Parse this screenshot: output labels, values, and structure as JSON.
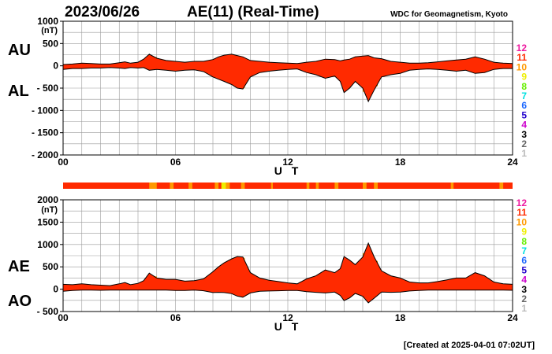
{
  "header": {
    "date": "2023/06/26",
    "title": "AE(11) (Real-Time)",
    "institution": "WDC for Geomagnetism, Kyoto"
  },
  "footer": {
    "created": "[Created at 2025-04-01 07:02UT]"
  },
  "colors": {
    "fill_main": "#ff2a00",
    "fill_light": "#ffd000",
    "fill_mid": "#ff9900",
    "grid": "#9a9a9a",
    "curve": "#000000"
  },
  "station_legend": [
    {
      "label": "12",
      "color": "#ee1aa0"
    },
    {
      "label": "11",
      "color": "#ff2a00"
    },
    {
      "label": "10",
      "color": "#ff9900"
    },
    {
      "label": "9",
      "color": "#eeee00"
    },
    {
      "label": "8",
      "color": "#66ee00"
    },
    {
      "label": "7",
      "color": "#00e0e0"
    },
    {
      "label": "6",
      "color": "#1a66ff"
    },
    {
      "label": "5",
      "color": "#2200cc"
    },
    {
      "label": "4",
      "color": "#cc00cc"
    },
    {
      "label": "3",
      "color": "#000000"
    },
    {
      "label": "2",
      "color": "#666666"
    },
    {
      "label": "1",
      "color": "#bbbbbb"
    }
  ],
  "chart_data": [
    {
      "type": "area",
      "id": "au_al",
      "series_labels": [
        "AU",
        "AL"
      ],
      "unit": "(nT)",
      "xlabel": "U T",
      "xlim": [
        0,
        24
      ],
      "xticks": [
        "00",
        "06",
        "12",
        "18",
        "24"
      ],
      "ylim": [
        -2000,
        1000
      ],
      "yticks": [
        "1000",
        "500",
        "0",
        "- 500",
        "- 1000",
        "- 1500",
        "- 2000"
      ],
      "grid": true,
      "x_hours": [
        0,
        0.5,
        1,
        1.5,
        2,
        2.5,
        3,
        3.3,
        3.6,
        4,
        4.3,
        4.6,
        5,
        5.5,
        6,
        6.5,
        7,
        7.5,
        8,
        8.3,
        8.6,
        9,
        9.3,
        9.6,
        10,
        10.5,
        11,
        11.5,
        12,
        12.5,
        13,
        13.5,
        14,
        14.5,
        14.8,
        15,
        15.3,
        15.6,
        16,
        16.3,
        16.6,
        17,
        17.5,
        18,
        18.5,
        19,
        19.5,
        20,
        20.5,
        21,
        21.5,
        22,
        22.5,
        23,
        23.5,
        24
      ],
      "au": [
        30,
        40,
        60,
        50,
        40,
        40,
        70,
        90,
        60,
        80,
        150,
        260,
        170,
        120,
        100,
        80,
        100,
        100,
        140,
        200,
        240,
        260,
        230,
        200,
        120,
        100,
        80,
        70,
        60,
        50,
        80,
        100,
        150,
        140,
        110,
        130,
        150,
        200,
        220,
        230,
        180,
        160,
        100,
        80,
        60,
        60,
        70,
        90,
        110,
        130,
        150,
        200,
        150,
        80,
        60,
        50
      ],
      "al": [
        -80,
        -60,
        -60,
        -50,
        -50,
        -40,
        -50,
        -60,
        -40,
        -50,
        -40,
        -100,
        -80,
        -100,
        -120,
        -100,
        -90,
        -130,
        -250,
        -300,
        -350,
        -420,
        -500,
        -520,
        -250,
        -150,
        -120,
        -100,
        -80,
        -70,
        -150,
        -200,
        -280,
        -230,
        -350,
        -600,
        -500,
        -350,
        -500,
        -800,
        -550,
        -250,
        -200,
        -170,
        -100,
        -80,
        -70,
        -80,
        -100,
        -120,
        -100,
        -170,
        -150,
        -80,
        -60,
        -60
      ],
      "station_bands": [
        {
          "start": 4.6,
          "end": 5.0,
          "station": "10"
        },
        {
          "start": 5.7,
          "end": 5.9,
          "station": "10"
        },
        {
          "start": 6.7,
          "end": 6.9,
          "station": "10"
        },
        {
          "start": 8.1,
          "end": 8.3,
          "station": "10"
        },
        {
          "start": 8.45,
          "end": 8.7,
          "station": "9"
        },
        {
          "start": 8.7,
          "end": 8.9,
          "station": "10"
        },
        {
          "start": 9.5,
          "end": 9.7,
          "station": "10"
        },
        {
          "start": 11.1,
          "end": 11.2,
          "station": "10"
        },
        {
          "start": 13.0,
          "end": 13.15,
          "station": "10"
        },
        {
          "start": 13.5,
          "end": 13.65,
          "station": "10"
        },
        {
          "start": 14.5,
          "end": 14.7,
          "station": "10"
        },
        {
          "start": 16.0,
          "end": 16.2,
          "station": "10"
        },
        {
          "start": 16.6,
          "end": 16.8,
          "station": "10"
        },
        {
          "start": 20.7,
          "end": 20.85,
          "station": "10"
        },
        {
          "start": 23.3,
          "end": 23.5,
          "station": "10"
        }
      ]
    },
    {
      "type": "area",
      "id": "ae_ao",
      "series_labels": [
        "AE",
        "AO"
      ],
      "unit": "(nT)",
      "xlabel": "U T",
      "xlim": [
        0,
        24
      ],
      "xticks": [
        "00",
        "06",
        "12",
        "18",
        "24"
      ],
      "ylim": [
        -500,
        2000
      ],
      "yticks": [
        "2000",
        "1500",
        "1000",
        "500",
        "0",
        "- 500"
      ],
      "grid": true
    }
  ]
}
